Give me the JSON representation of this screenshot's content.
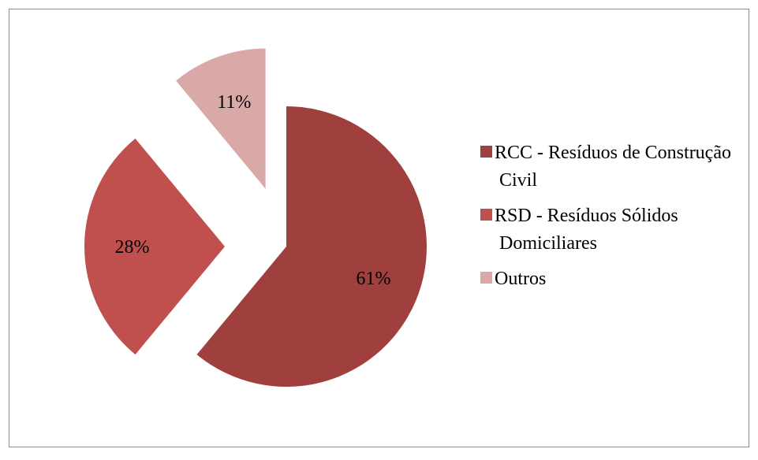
{
  "chart_data": {
    "type": "pie",
    "categories": [
      "RCC - Resíduos de Construção Civil",
      "RSD - Resíduos Sólidos Domiciliares",
      "Outros"
    ],
    "values": [
      61,
      28,
      11
    ],
    "value_labels": [
      "61%",
      "28%",
      "11%"
    ],
    "colors": [
      "#9f3f3e",
      "#c0504d",
      "#d9a9a8"
    ],
    "legend": "right",
    "exploded": [
      false,
      true,
      true
    ]
  }
}
